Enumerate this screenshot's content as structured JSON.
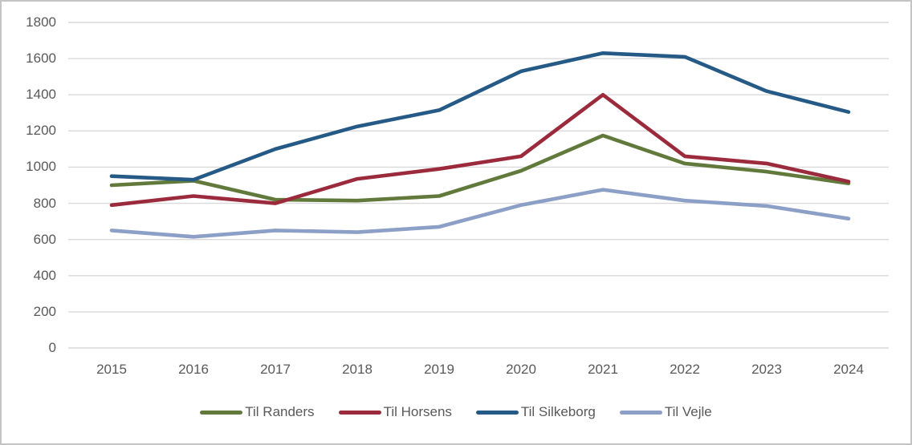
{
  "chart_data": {
    "type": "line",
    "title": "",
    "xlabel": "",
    "ylabel": "",
    "categories": [
      "2015",
      "2016",
      "2017",
      "2018",
      "2019",
      "2020",
      "2021",
      "2022",
      "2023",
      "2024"
    ],
    "series": [
      {
        "name": "Til Randers",
        "color": "#617A3C",
        "values": [
          900,
          925,
          820,
          815,
          840,
          980,
          1175,
          1020,
          975,
          910
        ]
      },
      {
        "name": "Til Horsens",
        "color": "#9B2B3C",
        "values": [
          790,
          840,
          800,
          935,
          990,
          1060,
          1400,
          1060,
          1020,
          920
        ]
      },
      {
        "name": "Til Silkeborg",
        "color": "#265A86",
        "values": [
          950,
          930,
          1100,
          1225,
          1315,
          1530,
          1630,
          1610,
          1420,
          1305
        ]
      },
      {
        "name": "Til Vejle",
        "color": "#8C9FC6",
        "values": [
          650,
          615,
          650,
          640,
          670,
          790,
          875,
          815,
          785,
          715
        ]
      }
    ],
    "ylim": [
      0,
      1800
    ],
    "y_ticks": [
      0,
      200,
      400,
      600,
      800,
      1000,
      1200,
      1400,
      1600,
      1800
    ],
    "grid": true,
    "legend_position": "bottom"
  },
  "colors": {
    "grid": "#D9D9D9",
    "tick_text": "#595959",
    "background": "#FFFFFF",
    "frame_border": "#C4C4C4"
  }
}
